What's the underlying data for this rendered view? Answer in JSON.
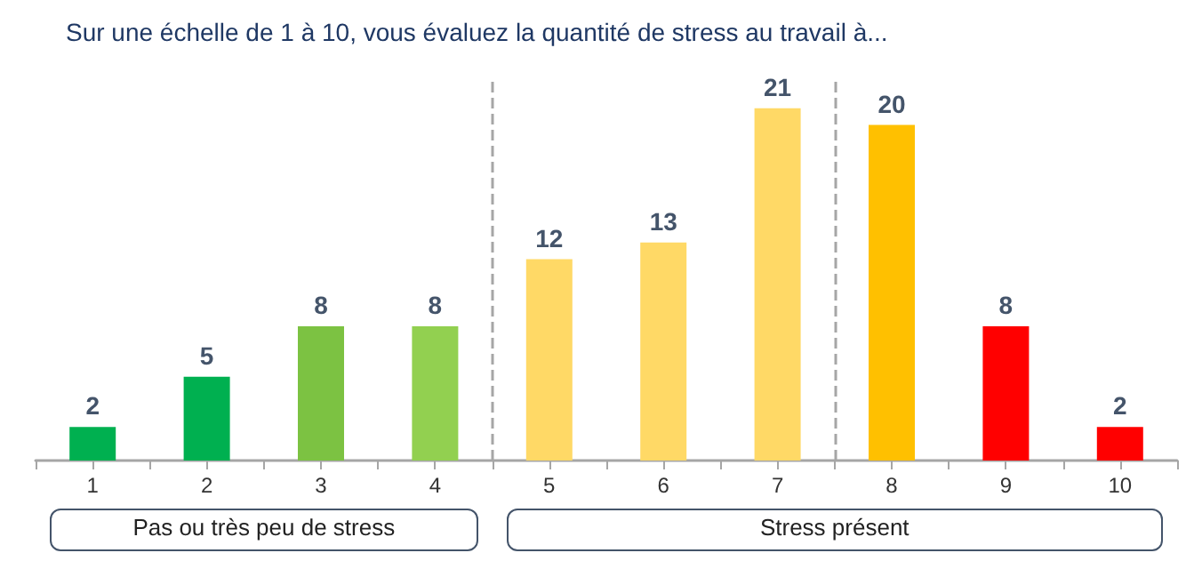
{
  "chart_data": {
    "type": "bar",
    "title": "Sur une échelle de 1 à 10, vous évaluez la quantité de stress au travail à...",
    "x": [
      1,
      2,
      3,
      4,
      5,
      6,
      7,
      8,
      9,
      10
    ],
    "values": [
      2,
      5,
      8,
      8,
      12,
      13,
      21,
      20,
      8,
      2
    ],
    "colors": [
      "#00b050",
      "#00b050",
      "#7cc242",
      "#92d050",
      "#ffd966",
      "#ffd966",
      "#ffd966",
      "#ffc000",
      "#ff0000",
      "#ff0000"
    ],
    "xlim": [
      0.5,
      10.5
    ],
    "xticks": [
      1,
      2,
      3,
      4,
      5,
      6,
      7,
      8,
      9,
      10,
      {
        "value": 0.5,
        "label": null
      },
      {
        "value": 1.5,
        "label": null
      },
      {
        "value": 2.5,
        "label": null
      },
      {
        "value": 3.5,
        "label": null
      },
      {
        "value": 4.5,
        "label": null
      },
      {
        "value": 5.5,
        "label": null
      },
      {
        "value": 6.5,
        "label": null
      },
      {
        "value": 7.5,
        "label": null
      },
      {
        "value": 8.5,
        "label": null
      },
      {
        "value": 9.5,
        "label": null
      },
      {
        "value": 10.5,
        "label": null
      }
    ],
    "tick_labels": "x",
    "data_labels": true,
    "grid": false,
    "ref_lines": [
      {
        "axis": "x",
        "value": 4.5,
        "color": "#a6a6a6",
        "line_style": "dashed"
      },
      {
        "axis": "x",
        "value": 7.5,
        "color": "#a6a6a6",
        "line_style": "dashed"
      }
    ],
    "annotations": [
      "Pas ou très peu de stress",
      "Stress présent"
    ]
  }
}
